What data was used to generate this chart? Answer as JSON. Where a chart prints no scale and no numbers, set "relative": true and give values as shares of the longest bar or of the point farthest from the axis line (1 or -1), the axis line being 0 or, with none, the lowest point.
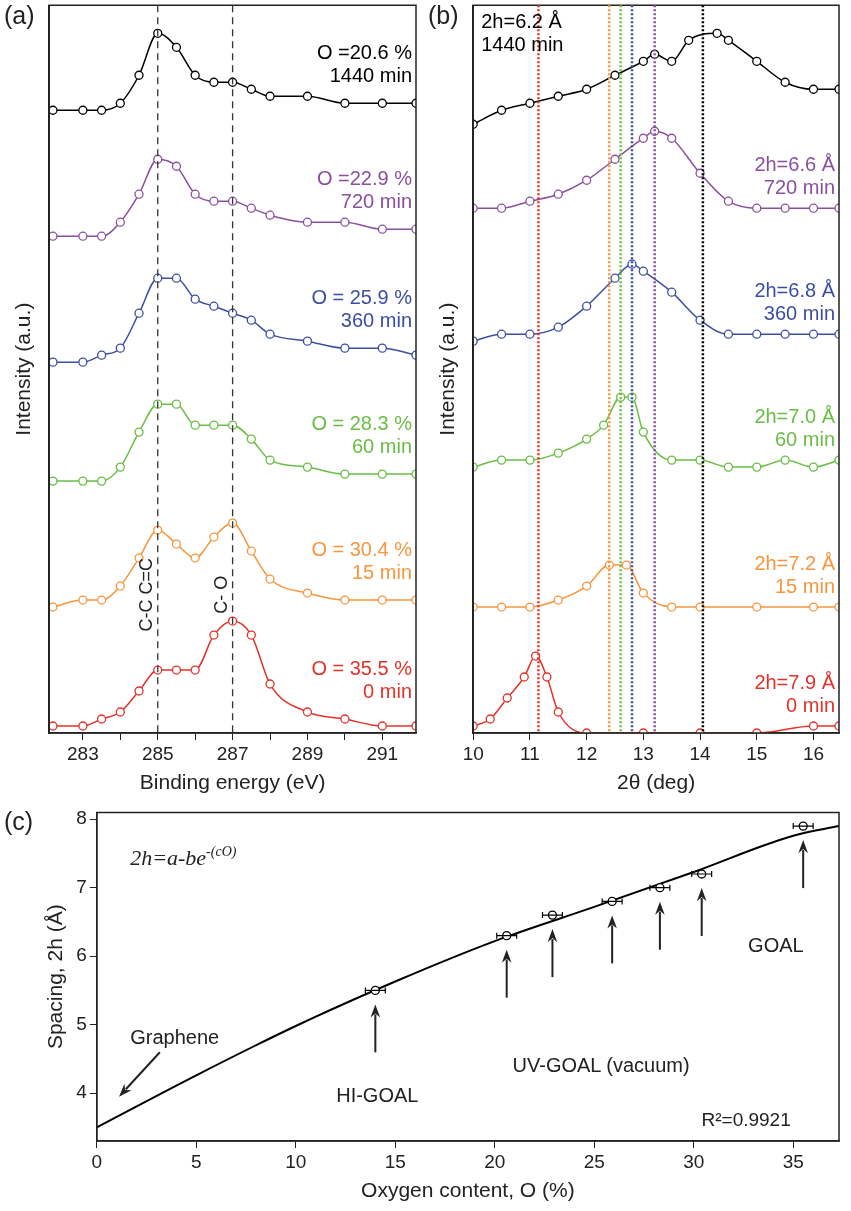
{
  "chart_data": [
    {
      "type": "line",
      "title": "(a)",
      "xlabel": "Binding energy (eV)",
      "ylabel": "Intensity (a.u.)",
      "relative": true,
      "marker": "circle",
      "x": [
        282.2,
        283,
        283.5,
        284,
        284.5,
        285,
        285.5,
        286,
        286.5,
        287,
        287.5,
        288,
        289,
        290,
        291,
        291.9
      ],
      "xlim": [
        282.1,
        291.9
      ],
      "xticks": [
        283,
        {
          "value": 284,
          "label": null
        },
        285,
        {
          "value": 286,
          "label": null
        },
        287,
        {
          "value": 288,
          "label": null
        },
        289,
        {
          "value": 290,
          "label": null
        },
        291
      ],
      "series": [
        {
          "name": "O =20.6 %\n1440 min",
          "color": "#000000",
          "values": [
            0.89,
            0.89,
            0.89,
            0.9,
            0.94,
            1,
            0.98,
            0.94,
            0.93,
            0.93,
            0.92,
            0.91,
            0.91,
            0.9,
            0.9,
            0.9
          ]
        },
        {
          "name": "O =22.9 %\n720 min",
          "color": "#8a4f9e",
          "values": [
            0.71,
            0.71,
            0.71,
            0.73,
            0.77,
            0.82,
            0.81,
            0.77,
            0.76,
            0.76,
            0.75,
            0.74,
            0.73,
            0.73,
            0.72,
            0.72
          ]
        },
        {
          "name": "O = 25.9 %\n360 min",
          "color": "#3d4ea0",
          "values": [
            0.53,
            0.53,
            0.54,
            0.55,
            0.6,
            0.65,
            0.65,
            0.62,
            0.61,
            0.6,
            0.59,
            0.57,
            0.56,
            0.55,
            0.55,
            0.54
          ]
        },
        {
          "name": "O = 28.3 %\n60 min",
          "color": "#6abd45",
          "values": [
            0.36,
            0.36,
            0.36,
            0.38,
            0.43,
            0.47,
            0.47,
            0.44,
            0.44,
            0.44,
            0.42,
            0.39,
            0.38,
            0.37,
            0.37,
            0.37
          ]
        },
        {
          "name": "O = 30.4 %\n15 min",
          "color": "#f7963e",
          "values": [
            0.18,
            0.19,
            0.19,
            0.21,
            0.25,
            0.29,
            0.27,
            0.25,
            0.28,
            0.3,
            0.26,
            0.22,
            0.2,
            0.19,
            0.19,
            0.19
          ]
        },
        {
          "name": "O = 35.5 %\n0 min",
          "color": "#e2332a",
          "values": [
            0.01,
            0.01,
            0.02,
            0.03,
            0.06,
            0.09,
            0.09,
            0.09,
            0.14,
            0.16,
            0.14,
            0.07,
            0.03,
            0.02,
            0.01,
            0.01
          ]
        }
      ],
      "ref_lines": [
        {
          "axis": "x",
          "value": 285,
          "label": "C-C C=C",
          "color": "#333333",
          "line_style": "dashed"
        },
        {
          "axis": "x",
          "value": 287,
          "label": "C- O",
          "color": "#333333",
          "line_style": "dashed"
        }
      ]
    },
    {
      "type": "line",
      "title": "(b)",
      "xlabel": "2θ (deg)",
      "ylabel": "Intensity (a.u.)",
      "relative": true,
      "marker": "circle",
      "xlim": [
        10,
        16.45
      ],
      "xticks": [
        10,
        11,
        12,
        13,
        14,
        15,
        16
      ],
      "series": [
        {
          "name": "2h=6.2 Å\n1440 min",
          "color": "#000000",
          "x": [
            10,
            10.5,
            11,
            11.5,
            12,
            12.5,
            13,
            13.2,
            13.5,
            13.8,
            14.3,
            14.5,
            15,
            15.5,
            16,
            16.45
          ],
          "values": [
            0.87,
            0.89,
            0.9,
            0.91,
            0.92,
            0.94,
            0.96,
            0.97,
            0.96,
            0.99,
            1,
            0.99,
            0.96,
            0.93,
            0.92,
            0.92
          ]
        },
        {
          "name": "2h=6.6 Å\n720 min",
          "color": "#8a4f9e",
          "x": [
            10,
            10.5,
            11,
            11.5,
            12,
            12.5,
            13,
            13.2,
            13.5,
            14,
            14.5,
            15,
            15.5,
            16,
            16.45
          ],
          "values": [
            0.75,
            0.75,
            0.76,
            0.77,
            0.79,
            0.82,
            0.85,
            0.86,
            0.85,
            0.8,
            0.76,
            0.75,
            0.75,
            0.75,
            0.75
          ]
        },
        {
          "name": "2h=6.8 Å\n360 min",
          "color": "#3d4ea0",
          "x": [
            10,
            10.5,
            11,
            11.5,
            12,
            12.5,
            12.8,
            13,
            13.5,
            14,
            14.5,
            15,
            15.5,
            16,
            16.45
          ],
          "values": [
            0.56,
            0.57,
            0.57,
            0.58,
            0.61,
            0.65,
            0.67,
            0.66,
            0.63,
            0.59,
            0.57,
            0.57,
            0.57,
            0.57,
            0.57
          ]
        },
        {
          "name": "2h=7.0 Å\n60 min",
          "color": "#6abd45",
          "x": [
            10,
            10.5,
            11,
            11.5,
            12,
            12.3,
            12.6,
            12.8,
            13,
            13.5,
            14,
            14.5,
            15,
            15.5,
            16,
            16.45
          ],
          "values": [
            0.38,
            0.39,
            0.39,
            0.4,
            0.42,
            0.44,
            0.48,
            0.48,
            0.43,
            0.39,
            0.39,
            0.38,
            0.38,
            0.39,
            0.38,
            0.39
          ]
        },
        {
          "name": "2h=7.2 Å\n15 min",
          "color": "#f7963e",
          "x": [
            10,
            10.5,
            11,
            11.5,
            12,
            12.4,
            12.7,
            13,
            13.5,
            14,
            15,
            16,
            16.45
          ],
          "values": [
            0.18,
            0.18,
            0.18,
            0.19,
            0.21,
            0.24,
            0.24,
            0.2,
            0.18,
            0.18,
            0.18,
            0.18,
            0.18
          ]
        },
        {
          "name": "2h=7.9 Å\n0 min",
          "color": "#e2332a",
          "x": [
            10,
            10.3,
            10.6,
            10.9,
            11.1,
            11.3,
            11.5,
            12,
            13,
            14,
            15,
            16,
            16.45
          ],
          "values": [
            0.01,
            0.02,
            0.05,
            0.08,
            0.11,
            0.08,
            0.03,
            0,
            0,
            0,
            0,
            0.01,
            0.01
          ]
        }
      ],
      "ref_lines": [
        {
          "axis": "x",
          "value": 11.15,
          "color": "#e2332a",
          "line_style": "dotted"
        },
        {
          "axis": "x",
          "value": 12.4,
          "color": "#f7963e",
          "line_style": "dotted"
        },
        {
          "axis": "x",
          "value": 12.6,
          "color": "#6abd45",
          "line_style": "dotted"
        },
        {
          "axis": "x",
          "value": 12.8,
          "color": "#3d4ea0",
          "line_style": "dotted"
        },
        {
          "axis": "x",
          "value": 13.2,
          "color": "#8a4f9e",
          "line_style": "dotted"
        },
        {
          "axis": "x",
          "value": 14.05,
          "color": "#000000",
          "line_style": "dotted"
        }
      ]
    },
    {
      "type": "scatter",
      "title": "(c)",
      "xlabel": "Oxygen content, O (%)",
      "ylabel": "Spacing, 2h (Å)",
      "xlim": [
        0,
        37.3
      ],
      "xticks": [
        0,
        5,
        10,
        15,
        20,
        25,
        30,
        35
      ],
      "ylim": [
        3.3,
        8.1
      ],
      "yticks": [
        4,
        5,
        6,
        7,
        8
      ],
      "series": [
        {
          "color": "#000000",
          "marker": "circle",
          "x": [
            14,
            20.6,
            22.9,
            25.9,
            28.3,
            30.4,
            35.5
          ],
          "values": [
            5.5,
            6.3,
            6.6,
            6.8,
            7.0,
            7.2,
            7.9
          ],
          "xerrors": [
            0.5,
            0.5,
            0.5,
            0.5,
            0.5,
            0.5,
            0.5
          ]
        },
        {
          "type": "line",
          "color": "#000000",
          "marker": "none",
          "x": [
            0,
            5,
            10,
            15,
            20,
            25,
            30,
            35,
            37.3
          ],
          "values": [
            3.5,
            4.26,
            4.98,
            5.63,
            6.22,
            6.72,
            7.23,
            7.76,
            7.9
          ]
        }
      ],
      "annotations": [
        "2h=a-be$^{-(cO)}$",
        "Graphene",
        "HI-GOAL",
        "UV-GOAL (vacuum)",
        "GOAL",
        "R²=0.9921"
      ]
    }
  ]
}
